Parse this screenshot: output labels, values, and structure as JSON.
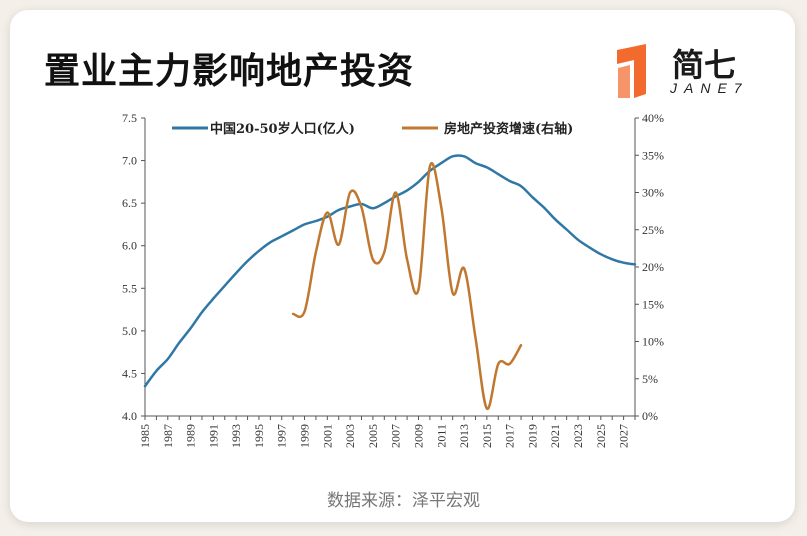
{
  "header": {
    "title": "置业主力影响地产投资",
    "logo_name": "简七",
    "logo_sub": "JANE7"
  },
  "footer": {
    "source": "数据来源：泽平宏观"
  },
  "colors": {
    "population": "#2f78a6",
    "investment": "#c07830",
    "accent": "#f26a2e"
  },
  "chart_data": {
    "type": "line",
    "title": "",
    "xlabel": "",
    "ylabel": "",
    "x": [
      1985,
      1986,
      1987,
      1988,
      1989,
      1990,
      1991,
      1992,
      1993,
      1994,
      1995,
      1996,
      1997,
      1998,
      1999,
      2000,
      2001,
      2002,
      2003,
      2004,
      2005,
      2006,
      2007,
      2008,
      2009,
      2010,
      2011,
      2012,
      2013,
      2014,
      2015,
      2016,
      2017,
      2018,
      2019,
      2020,
      2021,
      2022,
      2023,
      2024,
      2025,
      2026,
      2027,
      2028
    ],
    "x_tick_labels": [
      "1985",
      "1987",
      "1989",
      "1991",
      "1993",
      "1995",
      "1997",
      "1999",
      "2001",
      "2003",
      "2005",
      "2007",
      "2009",
      "2011",
      "2013",
      "2015",
      "2017",
      "2019",
      "2021",
      "2023",
      "2025",
      "2027"
    ],
    "ylim_left": [
      4.0,
      7.5
    ],
    "yticks_left": [
      "4.0",
      "4.5",
      "5.0",
      "5.5",
      "6.0",
      "6.5",
      "7.0",
      "7.5"
    ],
    "ylim_right": [
      0,
      40
    ],
    "yticks_right": [
      "0%",
      "5%",
      "10%",
      "15%",
      "20%",
      "25%",
      "30%",
      "35%",
      "40%"
    ],
    "legend_position": "top",
    "series": [
      {
        "name": "中国20-50岁人口(亿人)",
        "axis": "left",
        "x": [
          1985,
          1986,
          1987,
          1988,
          1989,
          1990,
          1991,
          1992,
          1993,
          1994,
          1995,
          1996,
          1997,
          1998,
          1999,
          2000,
          2001,
          2002,
          2003,
          2004,
          2005,
          2006,
          2007,
          2008,
          2009,
          2010,
          2011,
          2012,
          2013,
          2014,
          2015,
          2016,
          2017,
          2018,
          2019,
          2020,
          2021,
          2022,
          2023,
          2024,
          2025,
          2026,
          2027,
          2028
        ],
        "values": [
          4.35,
          4.53,
          4.67,
          4.86,
          5.03,
          5.22,
          5.38,
          5.53,
          5.68,
          5.82,
          5.94,
          6.04,
          6.11,
          6.18,
          6.25,
          6.29,
          6.34,
          6.42,
          6.46,
          6.49,
          6.44,
          6.5,
          6.58,
          6.65,
          6.75,
          6.88,
          6.97,
          7.05,
          7.05,
          6.97,
          6.92,
          6.84,
          6.76,
          6.7,
          6.57,
          6.45,
          6.31,
          6.19,
          6.07,
          5.98,
          5.9,
          5.84,
          5.8,
          5.78
        ]
      },
      {
        "name": "房地产投资增速(右轴)",
        "axis": "right",
        "x": [
          1998,
          1999,
          2000,
          2001,
          2002,
          2003,
          2004,
          2005,
          2006,
          2007,
          2008,
          2009,
          2010,
          2011,
          2012,
          2013,
          2014,
          2015,
          2016,
          2017,
          2018
        ],
        "values": [
          13.7,
          14.0,
          22.0,
          27.3,
          23.0,
          30.0,
          28.0,
          21.0,
          22.0,
          30.0,
          21.0,
          17.0,
          33.5,
          28.0,
          16.5,
          19.8,
          10.5,
          1.0,
          7.0,
          7.0,
          9.5
        ]
      }
    ]
  }
}
